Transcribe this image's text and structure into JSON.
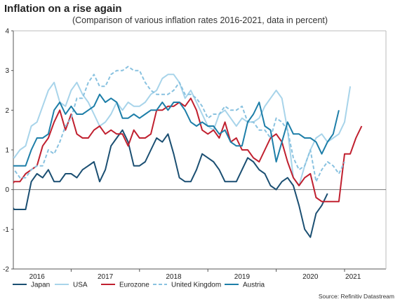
{
  "header": {
    "title": "Inflation on a rise again",
    "subtitle": "(Comparison of various inflation rates 2016-2021, data in percent)"
  },
  "footer": {
    "source": "Source: Refinitiv Datastream"
  },
  "chart_data": {
    "type": "line",
    "title": "Inflation on a rise again",
    "subtitle": "(Comparison of various inflation rates 2016-2021, data in percent)",
    "xlabel": "",
    "ylabel": "",
    "ylim": [
      -2,
      4
    ],
    "yticks": [
      -2,
      -1,
      0,
      1,
      2,
      3,
      4
    ],
    "xtick_labels": [
      "2016",
      "2017",
      "2018",
      "2019",
      "2020",
      "2021"
    ],
    "x_start": "2016-01",
    "x_end": "2021-03",
    "grid": false,
    "legend_position": "bottom",
    "series": [
      {
        "name": "Japan",
        "color": "#1b4f72",
        "dash": false,
        "values": [
          -0.4,
          -0.3,
          -0.5,
          -0.5,
          -0.5,
          0.2,
          0.4,
          0.3,
          0.5,
          0.2,
          0.2,
          0.4,
          0.4,
          0.3,
          0.5,
          0.6,
          0.7,
          0.2,
          0.5,
          1.1,
          1.3,
          1.5,
          1.2,
          0.6,
          0.6,
          0.7,
          1.0,
          1.3,
          1.2,
          1.4,
          0.9,
          0.3,
          0.2,
          0.2,
          0.5,
          0.9,
          0.8,
          0.7,
          0.5,
          0.2,
          0.2,
          0.2,
          0.5,
          0.8,
          0.7,
          0.5,
          0.4,
          0.1,
          0.0,
          0.2,
          0.3,
          0.1,
          -0.4,
          -1.0,
          -1.2,
          -0.6,
          -0.4,
          -0.1
        ]
      },
      {
        "name": "USA",
        "color": "#a8d4ea",
        "dash": false,
        "values": [
          1.0,
          0.9,
          0.8,
          1.0,
          1.1,
          1.6,
          1.7,
          2.1,
          2.5,
          2.7,
          2.2,
          2.1,
          2.5,
          2.7,
          2.4,
          2.2,
          1.9,
          1.6,
          1.7,
          1.9,
          2.2,
          2.0,
          2.2,
          2.1,
          2.1,
          2.2,
          2.4,
          2.5,
          2.8,
          2.9,
          2.9,
          2.7,
          2.3,
          2.5,
          2.2,
          1.9,
          1.6,
          1.5,
          1.9,
          2.0,
          1.8,
          1.6,
          1.8,
          1.7,
          1.7,
          1.8,
          2.1,
          2.3,
          2.5,
          2.3,
          1.5,
          0.3,
          0.1,
          0.6,
          1.0,
          1.3,
          1.4,
          1.2,
          1.3,
          1.4,
          1.7,
          2.6
        ]
      },
      {
        "name": "Eurozone",
        "color": "#c0202f",
        "dash": false,
        "values": [
          -0.1,
          0.0,
          0.2,
          0.2,
          0.4,
          0.5,
          0.6,
          1.1,
          1.3,
          1.7,
          2.0,
          1.5,
          1.9,
          1.4,
          1.3,
          1.3,
          1.5,
          1.6,
          1.4,
          1.5,
          1.4,
          1.4,
          1.1,
          1.5,
          1.3,
          1.3,
          1.4,
          2.0,
          2.0,
          2.1,
          2.1,
          2.2,
          2.1,
          2.3,
          2.0,
          1.5,
          1.4,
          1.5,
          1.3,
          1.7,
          1.2,
          1.3,
          1.0,
          1.0,
          0.8,
          0.7,
          1.0,
          1.3,
          1.4,
          1.2,
          0.7,
          0.3,
          0.1,
          0.3,
          0.4,
          -0.2,
          -0.3,
          -0.3,
          -0.3,
          -0.3,
          0.9,
          0.9,
          1.3,
          1.6
        ]
      },
      {
        "name": "United Kingdom",
        "color": "#89c2e0",
        "dash": true,
        "values": [
          0.3,
          0.5,
          0.5,
          0.3,
          0.3,
          0.5,
          0.6,
          0.6,
          1.0,
          0.9,
          1.2,
          1.6,
          1.8,
          2.3,
          2.3,
          2.7,
          2.9,
          2.6,
          2.6,
          2.9,
          3.0,
          3.0,
          3.1,
          3.0,
          3.0,
          2.7,
          2.5,
          2.4,
          2.4,
          2.4,
          2.5,
          2.7,
          2.4,
          2.4,
          2.3,
          2.1,
          1.8,
          1.9,
          1.9,
          2.1,
          2.0,
          2.0,
          2.1,
          1.7,
          1.7,
          1.5,
          1.5,
          1.3,
          1.8,
          1.7,
          1.5,
          0.8,
          0.5,
          0.6,
          1.0,
          0.2,
          0.5,
          0.7,
          0.6,
          0.4,
          0.7
        ]
      },
      {
        "name": "Austria",
        "color": "#1d7ea8",
        "dash": false,
        "values": [
          0.6,
          0.6,
          0.6,
          0.6,
          0.6,
          1.0,
          1.3,
          1.3,
          1.4,
          2.0,
          2.2,
          1.9,
          2.1,
          1.9,
          1.9,
          2.0,
          2.1,
          2.4,
          2.2,
          2.3,
          2.2,
          1.8,
          1.8,
          1.9,
          1.8,
          1.9,
          2.0,
          2.0,
          2.2,
          2.0,
          2.2,
          2.2,
          2.0,
          1.7,
          1.6,
          1.7,
          1.6,
          1.6,
          1.4,
          1.5,
          1.2,
          1.1,
          1.1,
          1.7,
          1.9,
          2.2,
          1.6,
          1.5,
          0.7,
          1.2,
          1.7,
          1.4,
          1.4,
          1.3,
          1.3,
          1.2,
          0.9,
          1.2,
          1.4,
          2.0
        ]
      }
    ]
  }
}
